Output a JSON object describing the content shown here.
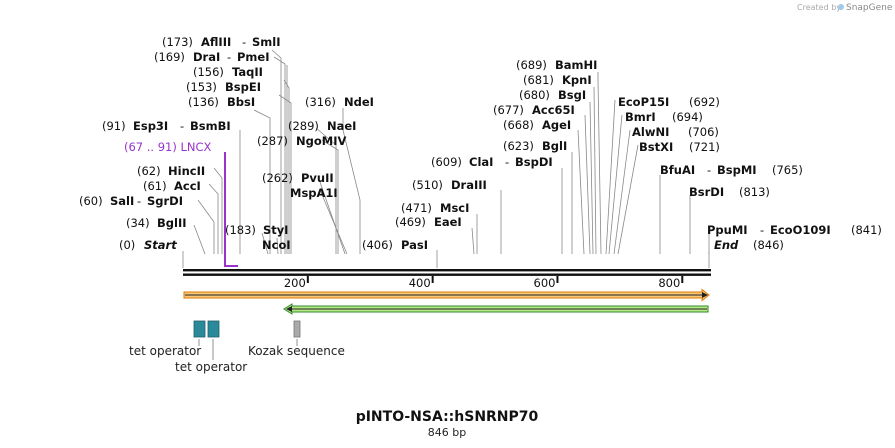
{
  "header": {
    "credit": "Created by",
    "brand": "SnapGene"
  },
  "plasmid": {
    "name": "pINTO-NSA::hSNRNP70",
    "length": "846 bp",
    "total_bp": 846
  },
  "axis": {
    "ticks": [
      200,
      400,
      600,
      800
    ]
  },
  "sites": [
    {
      "pos": "(173)",
      "name": "AflIII",
      "name2": "SmlI",
      "bp": 173
    },
    {
      "pos": "(169)",
      "name": "DraI",
      "name2": "PmeI",
      "bp": 169
    },
    {
      "pos": "(156)",
      "name": "TaqII",
      "name2": "",
      "bp": 156
    },
    {
      "pos": "(153)",
      "name": "BspEI",
      "name2": "",
      "bp": 153
    },
    {
      "pos": "(136)",
      "name": "BbsI",
      "name2": "",
      "bp": 136
    },
    {
      "pos": "(91)",
      "name": "Esp3I",
      "name2": "BsmBI",
      "bp": 91
    },
    {
      "pos": "(62)",
      "name": "HincII",
      "name2": "",
      "bp": 62
    },
    {
      "pos": "(61)",
      "name": "AccI",
      "name2": "",
      "bp": 61
    },
    {
      "pos": "(60)",
      "name": "SalI",
      "name2": "SgrDI",
      "bp": 60
    },
    {
      "pos": "(34)",
      "name": "BglII",
      "name2": "",
      "bp": 34
    },
    {
      "pos": "(0)",
      "name": "Start",
      "name2": "",
      "bp": 0
    },
    {
      "pos": "(183)",
      "name": "StyI",
      "name2": "",
      "bp": 183
    },
    {
      "pos": "",
      "name": "NcoI",
      "name2": "",
      "bp": 183
    },
    {
      "pos": "(316)",
      "name": "NdeI",
      "name2": "",
      "bp": 316
    },
    {
      "pos": "(289)",
      "name": "NaeI",
      "name2": "",
      "bp": 289
    },
    {
      "pos": "(287)",
      "name": "NgoMIV",
      "name2": "",
      "bp": 287
    },
    {
      "pos": "(262)",
      "name": "PvuII",
      "name2": "",
      "bp": 262
    },
    {
      "pos": "",
      "name": "MspA1I",
      "name2": "",
      "bp": 262
    },
    {
      "pos": "(406)",
      "name": "PasI",
      "name2": "",
      "bp": 406
    },
    {
      "pos": "(689)",
      "name": "BamHI",
      "name2": "",
      "bp": 689
    },
    {
      "pos": "(681)",
      "name": "KpnI",
      "name2": "",
      "bp": 681
    },
    {
      "pos": "(680)",
      "name": "BsgI",
      "name2": "",
      "bp": 680
    },
    {
      "pos": "(677)",
      "name": "Acc65I",
      "name2": "",
      "bp": 677
    },
    {
      "pos": "(668)",
      "name": "AgeI",
      "name2": "",
      "bp": 668
    },
    {
      "pos": "(623)",
      "name": "BglI",
      "name2": "",
      "bp": 623
    },
    {
      "pos": "(609)",
      "name": "ClaI",
      "name2": "BspDI",
      "bp": 609
    },
    {
      "pos": "(510)",
      "name": "DraIII",
      "name2": "",
      "bp": 510
    },
    {
      "pos": "(471)",
      "name": "MscI",
      "name2": "",
      "bp": 471
    },
    {
      "pos": "(469)",
      "name": "EaeI",
      "name2": "",
      "bp": 469
    },
    {
      "pos": "(692)",
      "name": "EcoP15I",
      "name2": "",
      "bp": 692
    },
    {
      "pos": "(694)",
      "name": "BmrI",
      "name2": "",
      "bp": 694
    },
    {
      "pos": "(706)",
      "name": "AlwNI",
      "name2": "",
      "bp": 706
    },
    {
      "pos": "(721)",
      "name": "BstXI",
      "name2": "",
      "bp": 721
    },
    {
      "pos": "(765)",
      "name": "BfuAI",
      "name2": "BspMI",
      "bp": 765
    },
    {
      "pos": "(813)",
      "name": "BsrDI",
      "name2": "",
      "bp": 813
    },
    {
      "pos": "(841)",
      "name": "PpuMI",
      "name2": "EcoO109I",
      "bp": 841
    },
    {
      "pos": "(846)",
      "name": "End",
      "name2": "",
      "bp": 846
    }
  ],
  "region": {
    "label": "(67 .. 91)  LNCX",
    "color": "#9933cc"
  },
  "features": [
    {
      "label": "tet operator",
      "color": "#2b8a9a"
    },
    {
      "label": "tet operator",
      "color": "#2b8a9a"
    },
    {
      "label": "Kozak sequence",
      "color": "#aaaaaa"
    }
  ],
  "arrows": [
    {
      "name": "forward-orf",
      "color": "#f7c77a",
      "edge": "#e07b00"
    },
    {
      "name": "reverse-orf",
      "color": "#b8e986",
      "edge": "#2d8a2d"
    }
  ]
}
